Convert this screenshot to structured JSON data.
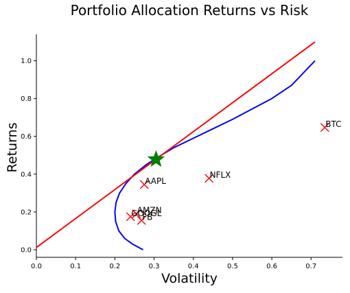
{
  "chart_data": {
    "type": "scatter",
    "title": "Portfolio Allocation Returns vs Risk",
    "xlabel": "Volatility",
    "ylabel": "Returns",
    "xlim": [
      0.0,
      0.78
    ],
    "ylim": [
      -0.04,
      1.14
    ],
    "xticks": [
      0.0,
      0.1,
      0.2,
      0.3,
      0.4,
      0.5,
      0.6,
      0.7
    ],
    "xtick_labels": [
      "0.0",
      "0.1",
      "0.2",
      "0.3",
      "0.4",
      "0.5",
      "0.6",
      "0.7"
    ],
    "yticks": [
      0.0,
      0.2,
      0.4,
      0.6,
      0.8,
      1.0
    ],
    "ytick_labels": [
      "0.0",
      "0.2",
      "0.4",
      "0.6",
      "0.8",
      "1.0"
    ],
    "grid": false,
    "assets": [
      {
        "label": "AAPL",
        "x": 0.275,
        "y": 0.345
      },
      {
        "label": "AMZN",
        "x": 0.255,
        "y": 0.19
      },
      {
        "label": "GOOGL",
        "x": 0.24,
        "y": 0.175
      },
      {
        "label": "FB",
        "x": 0.268,
        "y": 0.155
      },
      {
        "label": "NFLX",
        "x": 0.44,
        "y": 0.378
      },
      {
        "label": "BTC",
        "x": 0.735,
        "y": 0.647
      }
    ],
    "tangency_portfolio": {
      "x": 0.305,
      "y": 0.478
    },
    "efficient_frontier": [
      [
        0.272,
        0.0
      ],
      [
        0.245,
        0.03
      ],
      [
        0.225,
        0.06
      ],
      [
        0.21,
        0.1
      ],
      [
        0.202,
        0.15
      ],
      [
        0.2,
        0.2
      ],
      [
        0.203,
        0.25
      ],
      [
        0.212,
        0.3
      ],
      [
        0.228,
        0.35
      ],
      [
        0.25,
        0.4
      ],
      [
        0.28,
        0.45
      ],
      [
        0.31,
        0.49
      ],
      [
        0.35,
        0.54
      ],
      [
        0.4,
        0.59
      ],
      [
        0.45,
        0.64
      ],
      [
        0.5,
        0.69
      ],
      [
        0.55,
        0.745
      ],
      [
        0.6,
        0.8
      ],
      [
        0.65,
        0.87
      ],
      [
        0.71,
        1.0
      ]
    ],
    "capital_market_line": [
      [
        0.0,
        0.012
      ],
      [
        0.71,
        1.1
      ]
    ],
    "colors": {
      "frontier": "#0000ff",
      "cml": "#ff0000",
      "asset_marker": "#ff0000",
      "tangency": "#008000"
    }
  }
}
